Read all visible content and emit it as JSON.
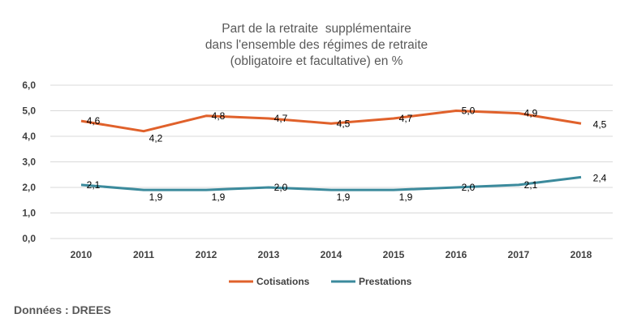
{
  "chart_data": {
    "type": "line",
    "title_lines": [
      "Part de la retraite  supplémentaire",
      "dans l'ensemble des régimes de retraite",
      "(obligatoire et facultative) en %"
    ],
    "categories": [
      "2010",
      "2011",
      "2012",
      "2013",
      "2014",
      "2015",
      "2016",
      "2017",
      "2018"
    ],
    "series": [
      {
        "name": "Cotisations",
        "color": "#E0612B",
        "values": [
          4.6,
          4.2,
          4.8,
          4.7,
          4.5,
          4.7,
          5.0,
          4.9,
          4.5
        ],
        "labels": [
          "4,6",
          "4,2",
          "4,8",
          "4,7",
          "4,5",
          "4,7",
          "5,0",
          "4,9",
          "4,5"
        ]
      },
      {
        "name": "Prestations",
        "color": "#3B8A9C",
        "values": [
          2.1,
          1.9,
          1.9,
          2.0,
          1.9,
          1.9,
          2.0,
          2.1,
          2.4
        ],
        "labels": [
          "2,1",
          "1,9",
          "1,9",
          "2,0",
          "1,9",
          "1,9",
          "2,0",
          "2,1",
          "2,4"
        ]
      }
    ],
    "ylim": [
      0,
      6
    ],
    "yticks": [
      "0,0",
      "1,0",
      "2,0",
      "3,0",
      "4,0",
      "5,0",
      "6,0"
    ],
    "grid": true,
    "legend_position": "bottom"
  },
  "source": "Données  : DREES"
}
